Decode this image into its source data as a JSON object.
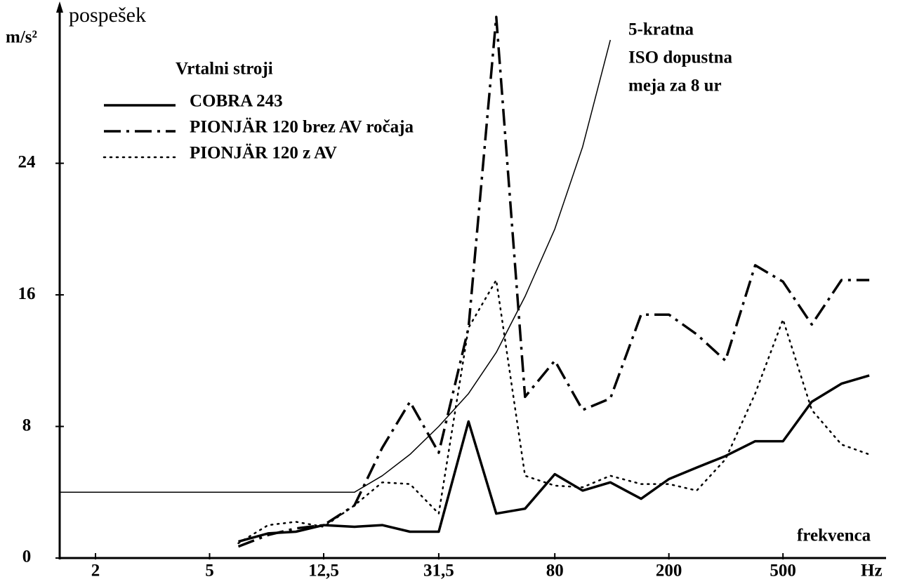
{
  "chart_data": {
    "type": "line",
    "y_label": "pospešek",
    "y_unit": "m/s²",
    "x_label": "frekvenca",
    "x_unit": "Hz",
    "legend_title": "Vrtalni stroji",
    "legend": "upper left",
    "log_x": true,
    "annotation": [
      "5-kratna",
      "ISO dopustna",
      "meja za 8 ur"
    ],
    "x": [
      6.3,
      8,
      10,
      12.5,
      16,
      20,
      25,
      31.5,
      40,
      50,
      63,
      80,
      100,
      125,
      160,
      200,
      250,
      315,
      400,
      500,
      630,
      800,
      1000
    ],
    "series": [
      {
        "name": "COBRA 243",
        "color": "#000000",
        "dash": "solid",
        "line_width": 3.5,
        "values": [
          1.0,
          1.5,
          1.6,
          2.0,
          1.9,
          2.0,
          1.6,
          1.6,
          8.3,
          2.7,
          3.0,
          5.1,
          4.1,
          4.6,
          3.6,
          4.8,
          5.5,
          6.2,
          7.1,
          7.1,
          9.5,
          10.6,
          11.1
        ]
      },
      {
        "name": "PIONJÄR 120 brez AV ročaja",
        "color": "#000000",
        "dash": "dashdot",
        "line_width": 3.5,
        "values": [
          0.7,
          1.4,
          1.8,
          2.0,
          3.2,
          6.7,
          9.5,
          6.4,
          14.0,
          32.9,
          9.8,
          12.0,
          9.0,
          9.7,
          14.8,
          14.8,
          13.6,
          12.0,
          17.8,
          16.8,
          14.2,
          16.9,
          16.9
        ]
      },
      {
        "name": "PIONJÄR 120 z AV",
        "color": "#000000",
        "dash": "dotted",
        "line_width": 2.5,
        "values": [
          0.9,
          2.0,
          2.2,
          1.9,
          3.2,
          4.6,
          4.5,
          2.7,
          14.0,
          16.9,
          5.0,
          4.4,
          4.3,
          5.0,
          4.5,
          4.5,
          4.1,
          6.0,
          10.0,
          14.5,
          9.0,
          6.9,
          6.3
        ]
      },
      {
        "color": "#000000",
        "dash": "solid",
        "line_width": 1.5,
        "x": [
          1.5,
          16,
          20,
          25,
          31.5,
          40,
          50,
          63,
          80,
          100,
          125
        ],
        "values": [
          4.0,
          4.0,
          5.0,
          6.3,
          8.0,
          10.0,
          12.5,
          15.9,
          20.0,
          25.0,
          31.5
        ]
      }
    ],
    "xlim": [
      1.5,
      1100
    ],
    "xticks": [
      2,
      5,
      {
        "value": 12.5,
        "label": "12,5"
      },
      {
        "value": 31.5,
        "label": "31,5"
      },
      80,
      200,
      500
    ],
    "ylim": [
      0,
      33.5
    ],
    "yticks": [
      0,
      8,
      16,
      24
    ]
  }
}
